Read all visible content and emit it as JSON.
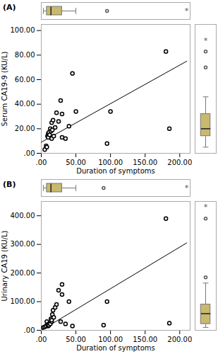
{
  "chart_data": [
    {
      "type": "scatter",
      "title": "(A)",
      "xlabel": "Duration of symptoms",
      "ylabel": "Serum CA19-9 (KU/L)",
      "x": [
        5,
        7,
        8,
        9,
        10,
        10,
        11,
        12,
        13,
        14,
        15,
        15,
        16,
        17,
        18,
        20,
        22,
        25,
        28,
        30,
        30,
        35,
        40,
        45,
        50,
        95,
        100,
        180,
        185
      ],
      "y": [
        3,
        6,
        5,
        14,
        16,
        13,
        17,
        15,
        20,
        18,
        12,
        25,
        19,
        27,
        14,
        21,
        33,
        26,
        43,
        32,
        13,
        12,
        22,
        65,
        34,
        8,
        34,
        83,
        20
      ],
      "line": {
        "x": [
          0,
          210
        ],
        "y": [
          9,
          75
        ]
      },
      "xlim": [
        0,
        215
      ],
      "ylim": [
        0,
        105
      ],
      "xticks": [
        {
          "value": 0,
          "label": ".00"
        },
        {
          "value": 50,
          "label": "50.00"
        },
        {
          "value": 100,
          "label": "100.00"
        },
        {
          "value": 150,
          "label": "150.00"
        },
        {
          "value": 200,
          "label": "200.00"
        }
      ],
      "yticks": [
        {
          "value": 0,
          "label": ".00"
        },
        {
          "value": 20,
          "label": "20.00"
        },
        {
          "value": 40,
          "label": "40.00"
        },
        {
          "value": 60,
          "label": "60.00"
        },
        {
          "value": 80,
          "label": "80.00"
        },
        {
          "value": 100,
          "label": "100.00"
        }
      ],
      "top_box": {
        "whisker_low": 3,
        "q1": 8,
        "median": 14,
        "q3": 30,
        "whisker_high": 50,
        "outliers": [
          95
        ],
        "star": 210,
        "star_label": "*",
        "color": "#c8b96e"
      },
      "right_box": {
        "whisker_low": 5,
        "q1": 14,
        "median": 20,
        "q3": 32,
        "whisker_high": 46,
        "outliers": [
          70,
          83
        ],
        "star": 92,
        "star_label": "*",
        "color": "#c8b96e"
      }
    },
    {
      "type": "scatter",
      "title": "(B)",
      "xlabel": "Duration of symptoms",
      "ylabel": "Urinary CA19 (KU/L)",
      "x": [
        3,
        5,
        7,
        8,
        9,
        10,
        10,
        11,
        12,
        13,
        14,
        15,
        15,
        16,
        17,
        18,
        20,
        22,
        25,
        28,
        30,
        30,
        35,
        40,
        45,
        90,
        95,
        180,
        185
      ],
      "y": [
        10,
        12,
        15,
        30,
        20,
        15,
        20,
        18,
        25,
        22,
        40,
        30,
        35,
        55,
        70,
        45,
        80,
        90,
        140,
        30,
        125,
        160,
        22,
        100,
        15,
        18,
        100,
        390,
        25
      ],
      "line": {
        "x": [
          0,
          210
        ],
        "y": [
          0,
          305
        ]
      },
      "xlim": [
        0,
        215
      ],
      "ylim": [
        0,
        450
      ],
      "xticks": [
        {
          "value": 0,
          "label": ".00"
        },
        {
          "value": 50,
          "label": "50.00"
        },
        {
          "value": 100,
          "label": "100.00"
        },
        {
          "value": 150,
          "label": "150.00"
        },
        {
          "value": 200,
          "label": "200.00"
        }
      ],
      "yticks": [
        {
          "value": 0,
          "label": ".00"
        },
        {
          "value": 100,
          "label": "100.00"
        },
        {
          "value": 200,
          "label": "200.00"
        },
        {
          "value": 300,
          "label": "300.00"
        },
        {
          "value": 400,
          "label": "400.00"
        }
      ],
      "top_box": {
        "whisker_low": 3,
        "q1": 8,
        "median": 14,
        "q3": 30,
        "whisker_high": 50,
        "outliers": [
          90
        ],
        "star": 210,
        "star_label": "*",
        "color": "#c8b96e"
      },
      "right_box": {
        "whisker_low": 10,
        "q1": 22,
        "median": 58,
        "q3": 90,
        "whisker_high": 165,
        "outliers": [
          185,
          390
        ],
        "star": 430,
        "star_label": "*",
        "color": "#c8b96e"
      }
    }
  ]
}
